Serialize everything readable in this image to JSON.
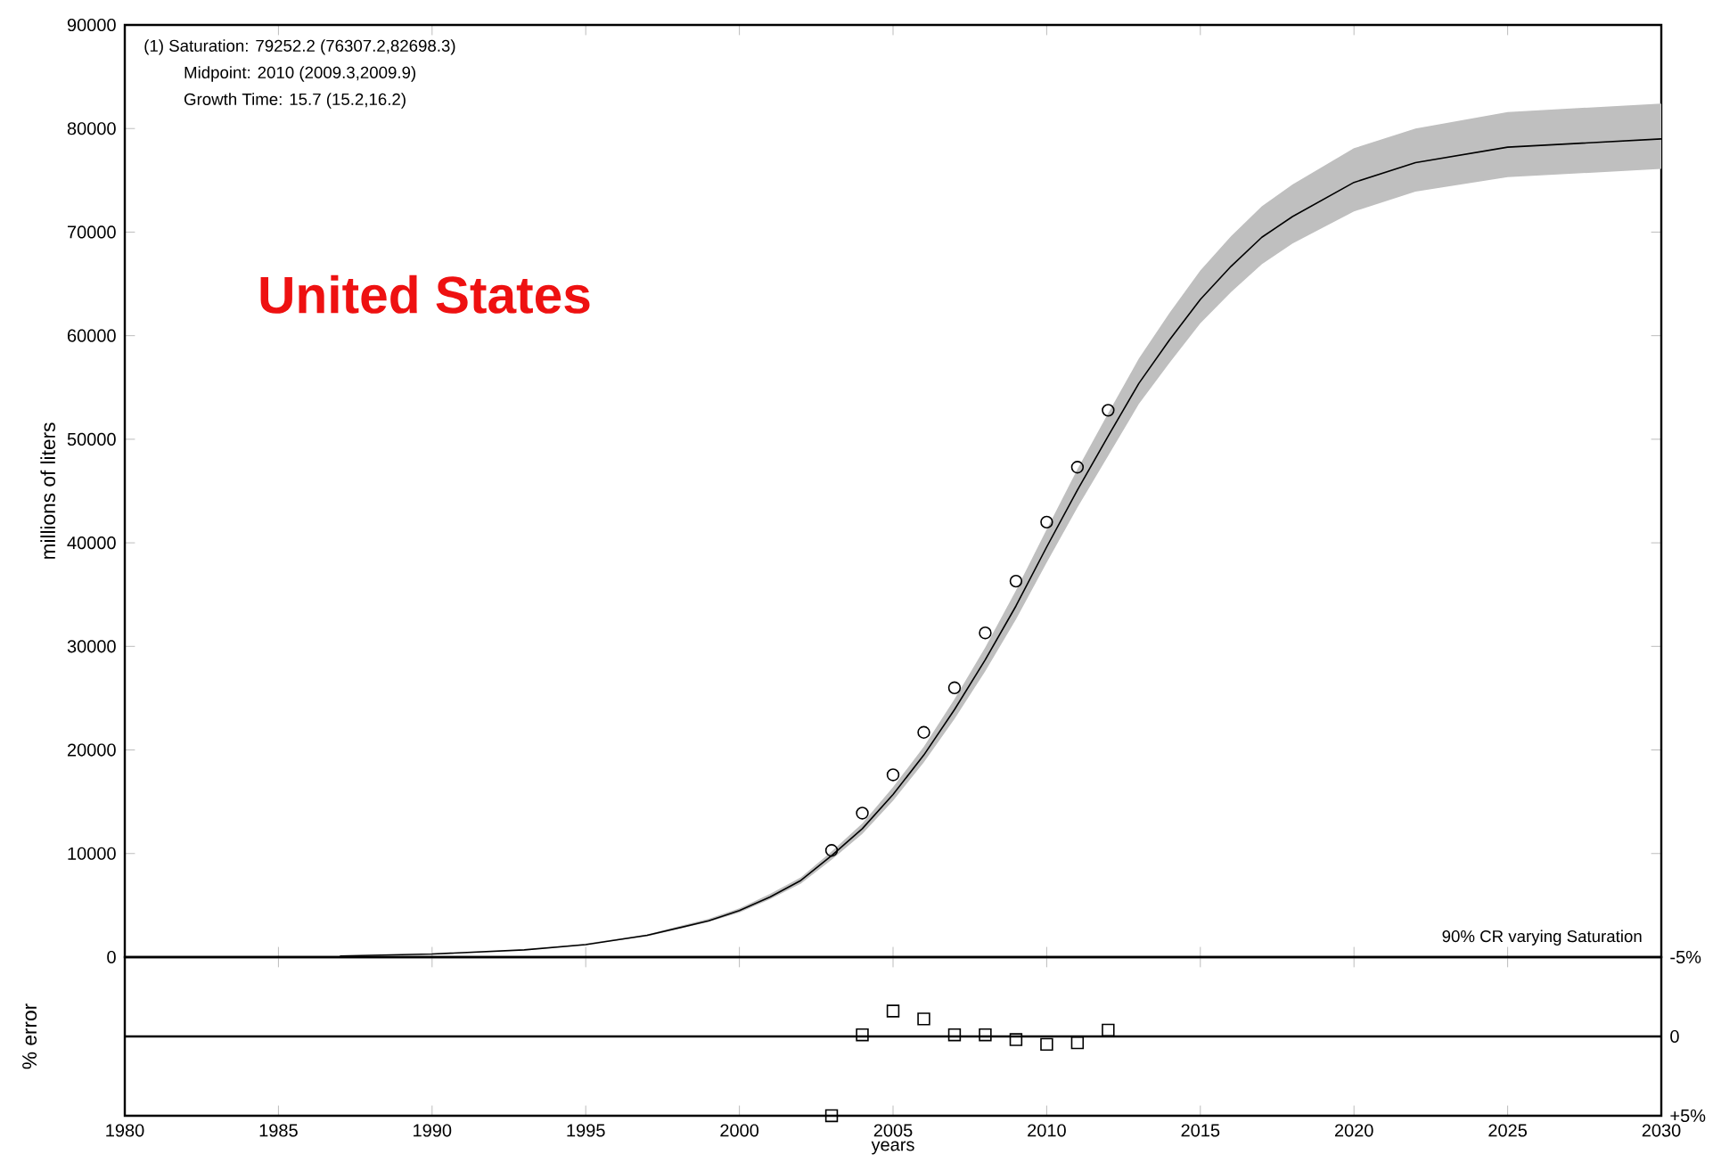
{
  "chart_data": [
    {
      "type": "line",
      "title": "United States",
      "ylabel": "millions of liters",
      "annotations": [
        "(1) Saturation: 79252.2 (76307.2,82698.3)",
        "Midpoint: 2010 (2009.3,2009.9)",
        "Growth Time: 15.7 (15.2,16.2)",
        "90% CR varying Saturation"
      ],
      "series": [
        {
          "color": "#000000",
          "marker": "none",
          "x": [
            1987,
            1990,
            1993,
            1995,
            1997,
            1999,
            2000,
            2001,
            2002,
            2003,
            2004,
            2005,
            2006,
            2007,
            2008,
            2009,
            2010,
            2011,
            2012,
            2013,
            2014,
            2015,
            2016,
            2017,
            2018,
            2020,
            2022,
            2025,
            2030
          ],
          "values": [
            100,
            300,
            700,
            1200,
            2100,
            3500,
            4500,
            5800,
            7400,
            9800,
            12400,
            15700,
            19500,
            23900,
            28700,
            33900,
            39600,
            45100,
            50300,
            55400,
            59600,
            63500,
            66700,
            69500,
            71500,
            74800,
            76700,
            78200,
            79000
          ],
          "lower": [
            100,
            300,
            700,
            1200,
            2000,
            3400,
            4300,
            5600,
            7100,
            9400,
            11900,
            15100,
            18800,
            23000,
            27600,
            32600,
            38100,
            43400,
            48400,
            53400,
            57400,
            61200,
            64200,
            66900,
            68900,
            72000,
            73900,
            75300,
            76100
          ],
          "upper": [
            100,
            300,
            700,
            1300,
            2200,
            3700,
            4700,
            6100,
            7700,
            10200,
            12900,
            16400,
            20300,
            24900,
            29900,
            35400,
            41300,
            47100,
            52500,
            57800,
            62200,
            66300,
            69600,
            72500,
            74600,
            78100,
            80000,
            81600,
            82400
          ]
        },
        {
          "type": "scatter",
          "color": "#000000",
          "marker": "circle",
          "x": [
            2003,
            2004,
            2005,
            2006,
            2007,
            2008,
            2009,
            2010,
            2011,
            2012
          ],
          "values": [
            10300,
            13900,
            17600,
            21700,
            26000,
            31300,
            36300,
            42000,
            47300,
            52800
          ]
        }
      ],
      "xlim": [
        1980,
        2030
      ],
      "xticks": [
        1980,
        1985,
        1990,
        1995,
        2000,
        2005,
        2010,
        2015,
        2020,
        2025,
        2030
      ],
      "ylim": [
        0,
        90000
      ],
      "yticks": [
        0,
        10000,
        20000,
        30000,
        40000,
        50000,
        60000,
        70000,
        80000,
        90000
      ],
      "tick_labels": "y",
      "grid": false
    },
    {
      "type": "scatter",
      "xlabel": "years",
      "ylabel": "% error",
      "series": [
        {
          "color": "#000000",
          "marker": "square",
          "x": [
            2003,
            2004,
            2005,
            2006,
            2007,
            2008,
            2009,
            2010,
            2011,
            2012
          ],
          "values": [
            5,
            -0.1,
            -1.6,
            -1.1,
            -0.1,
            -0.1,
            0.2,
            0.5,
            0.4,
            -0.4
          ]
        }
      ],
      "xlim": [
        1980,
        2030
      ],
      "xticks": [
        1980,
        1985,
        1990,
        1995,
        2000,
        2005,
        2010,
        2015,
        2020,
        2025,
        2030
      ],
      "ylim": [
        5,
        -5
      ],
      "yticks": [
        {
          "value": -5,
          "label": "-5%"
        },
        0,
        {
          "value": 5,
          "label": "+5%"
        }
      ],
      "ref_lines": [
        {
          "axis": "y",
          "value": 0
        }
      ],
      "grid": false
    }
  ]
}
